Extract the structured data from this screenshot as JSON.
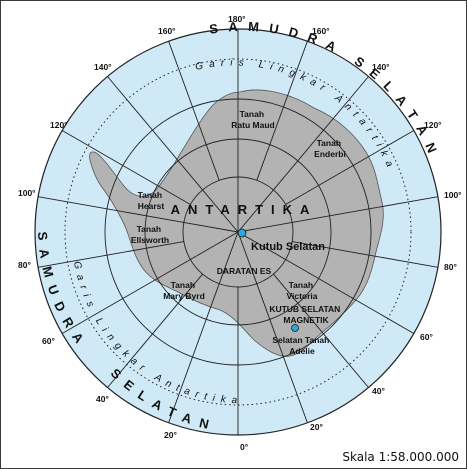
{
  "map": {
    "continent_label": "ANTARTIKA",
    "south_pole_label": "Kutub Selatan",
    "magnetic_pole_label": [
      "KUTUB SELATAN",
      "MAGNETIK"
    ],
    "ice_label": "DARATAN ES",
    "ocean_label_top": "SAMUDRA SELATAN",
    "ocean_label_left": "SAMUDRA",
    "ocean_label_bottom": "SELATAN",
    "antarctic_circle_label": "Garis Lingkar Antartika",
    "regions": {
      "ratu_maud": [
        "Tanah",
        "Ratu Maud"
      ],
      "enderbi": [
        "Tanah",
        "Enderbi"
      ],
      "hearst": [
        "Tanah",
        "Hearst"
      ],
      "ellsworth": [
        "Tanah",
        "Ellsworth"
      ],
      "mary_byrd": [
        "Tanah",
        "Mary Byrd"
      ],
      "victoria": [
        "Tanah",
        "Victoria"
      ],
      "adelie": [
        "Selatan Tanah",
        "Adelie"
      ]
    },
    "longitude_labels": [
      "180°",
      "160°",
      "140°",
      "120°",
      "100°",
      "80°",
      "60°",
      "40°",
      "20°",
      "0°",
      "20°",
      "40°",
      "60°",
      "80°",
      "100°",
      "120°",
      "140°",
      "160°"
    ],
    "scale": "Skala 1:58.000.000",
    "colors": {
      "ocean": "#cfeaf6",
      "land": "#b3b3b3",
      "pole_dot": "#2ea7dc"
    }
  }
}
